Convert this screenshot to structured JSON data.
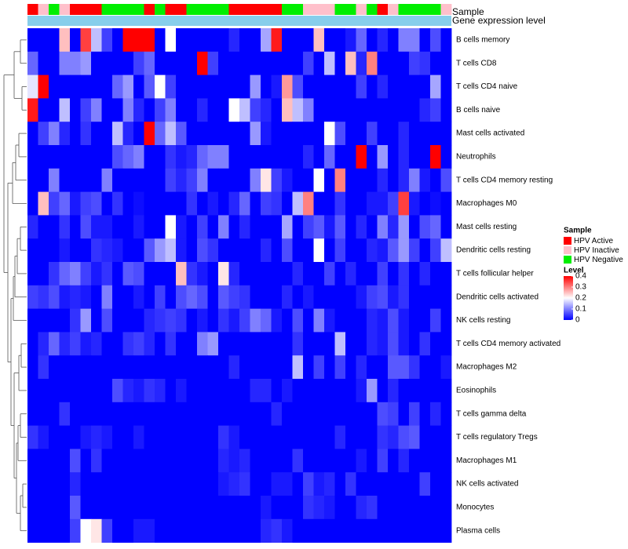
{
  "chart_data": {
    "type": "heatmap",
    "annotation_tracks": [
      {
        "name": "Sample",
        "values": [
          "Active",
          "Inactive",
          "Negative",
          "Inactive",
          "Active",
          "Active",
          "Active",
          "Negative",
          "Negative",
          "Negative",
          "Negative",
          "Active",
          "Negative",
          "Active",
          "Active",
          "Negative",
          "Negative",
          "Negative",
          "Negative",
          "Active",
          "Active",
          "Active",
          "Active",
          "Active",
          "Negative",
          "Negative",
          "Inactive",
          "Inactive",
          "Inactive",
          "Negative",
          "Negative",
          "Inactive",
          "Negative",
          "Active",
          "Inactive",
          "Negative",
          "Negative",
          "Negative",
          "Negative",
          "Inactive"
        ]
      },
      {
        "name": "Gene expression level",
        "values": []
      }
    ],
    "rows": [
      "B cells memory",
      "T cells CD8",
      "T cells CD4 naive",
      "B cells naive",
      "Mast cells activated",
      "Neutrophils",
      "T cells CD4 memory resting",
      "Macrophages M0",
      "Mast cells resting",
      "Dendritic cells resting",
      "T cells follicular helper",
      "Dendritic cells activated",
      "NK cells resting",
      "T cells CD4 memory activated",
      "Macrophages M2",
      "Eosinophils",
      "T cells gamma delta",
      "T cells regulatory  Tregs",
      "Macrophages M1",
      "NK cells activated",
      "Monocytes",
      "Plasma cells"
    ],
    "values": [
      [
        0,
        0,
        0,
        0.25,
        0,
        0.35,
        0.15,
        0.05,
        0,
        0.4,
        0.4,
        0.4,
        0,
        0.2,
        0,
        0,
        0,
        0,
        0,
        0.03,
        0,
        0,
        0.13,
        0.38,
        0,
        0,
        0,
        0.25,
        0,
        0,
        0.02,
        0.08,
        0,
        0.03,
        0,
        0.1,
        0.1,
        0,
        0.06,
        0
      ],
      [
        0.08,
        0,
        0,
        0.1,
        0.1,
        0.12,
        0,
        0,
        0,
        0,
        0.05,
        0.08,
        0,
        0,
        0,
        0,
        0.4,
        0.05,
        0,
        0,
        0,
        0,
        0,
        0,
        0,
        0,
        0.05,
        0,
        0.15,
        0,
        0.25,
        0.03,
        0.3,
        0,
        0,
        0,
        0.05,
        0.04,
        0,
        0
      ],
      [
        0.18,
        0.4,
        0,
        0,
        0,
        0,
        0,
        0,
        0.08,
        0.12,
        0,
        0.07,
        0.2,
        0.05,
        0,
        0,
        0,
        0,
        0,
        0,
        0,
        0.12,
        0,
        0.02,
        0.28,
        0.06,
        0,
        0,
        0,
        0,
        0,
        0.05,
        0,
        0.03,
        0,
        0,
        0,
        0,
        0.13,
        0
      ],
      [
        0.38,
        0,
        0,
        0.15,
        0,
        0.05,
        0.1,
        0,
        0,
        0.1,
        0.03,
        0,
        0.05,
        0.1,
        0,
        0,
        0.03,
        0,
        0,
        0.2,
        0.15,
        0.05,
        0.03,
        0,
        0.25,
        0.15,
        0.1,
        0,
        0,
        0,
        0,
        0,
        0,
        0,
        0,
        0,
        0,
        0.03,
        0.05,
        0
      ],
      [
        0,
        0.05,
        0.1,
        0.03,
        0,
        0.04,
        0,
        0,
        0.15,
        0.03,
        0,
        0.4,
        0.08,
        0.15,
        0.07,
        0,
        0,
        0,
        0,
        0,
        0,
        0.12,
        0.02,
        0,
        0,
        0,
        0,
        0,
        0.2,
        0.06,
        0,
        0,
        0.05,
        0,
        0,
        0.03,
        0,
        0,
        0,
        0
      ],
      [
        0,
        0,
        0,
        0,
        0,
        0,
        0,
        0,
        0.06,
        0.08,
        0.1,
        0,
        0,
        0.04,
        0.02,
        0.03,
        0.08,
        0.1,
        0.1,
        0,
        0,
        0,
        0,
        0,
        0,
        0,
        0.03,
        0,
        0.08,
        0,
        0,
        0.4,
        0,
        0.12,
        0,
        0.03,
        0,
        0,
        0.4,
        0
      ],
      [
        0,
        0,
        0.1,
        0,
        0,
        0,
        0,
        0.1,
        0,
        0,
        0,
        0,
        0,
        0.05,
        0.03,
        0.05,
        0.1,
        0,
        0,
        0,
        0,
        0.1,
        0.22,
        0.05,
        0.02,
        0,
        0,
        0.2,
        0,
        0.3,
        0,
        0,
        0,
        0.03,
        0,
        0.03,
        0.1,
        0.02,
        0,
        0.06
      ],
      [
        0,
        0.25,
        0.05,
        0.08,
        0.02,
        0.05,
        0.06,
        0,
        0.04,
        0,
        0.01,
        0,
        0,
        0,
        0,
        0.04,
        0,
        0.02,
        0,
        0.03,
        0.08,
        0,
        0.05,
        0.04,
        0,
        0.15,
        0.3,
        0,
        0,
        0.04,
        0,
        0,
        0.02,
        0.02,
        0.05,
        0.35,
        0.02,
        0,
        0.01,
        0
      ],
      [
        0.03,
        0,
        0,
        0.04,
        0,
        0.06,
        0.02,
        0.02,
        0,
        0,
        0.02,
        0,
        0,
        0.2,
        0.02,
        0,
        0.05,
        0,
        0.1,
        0,
        0.03,
        0,
        0,
        0,
        0.13,
        0,
        0.05,
        0.07,
        0.02,
        0.07,
        0,
        0.03,
        0,
        0.1,
        0.03,
        0.12,
        0,
        0.06,
        0.08,
        0
      ],
      [
        0,
        0,
        0,
        0.02,
        0,
        0,
        0.04,
        0.03,
        0.02,
        0,
        0,
        0.07,
        0.12,
        0.15,
        0.02,
        0,
        0.06,
        0.04,
        0,
        0,
        0,
        0,
        0.03,
        0,
        0.06,
        0,
        0,
        0.2,
        0,
        0.05,
        0,
        0,
        0.03,
        0.02,
        0.07,
        0.12,
        0.05,
        0,
        0.05,
        0.15
      ],
      [
        0,
        0,
        0.04,
        0.08,
        0.1,
        0.05,
        0.02,
        0.04,
        0,
        0.07,
        0.06,
        0,
        0,
        0,
        0.25,
        0.04,
        0.02,
        0,
        0.22,
        0.03,
        0,
        0,
        0,
        0,
        0,
        0.03,
        0,
        0,
        0.05,
        0,
        0.03,
        0,
        0,
        0.05,
        0,
        0.04,
        0,
        0.03,
        0,
        0
      ],
      [
        0.05,
        0.04,
        0.06,
        0.02,
        0.03,
        0.02,
        0,
        0.1,
        0,
        0,
        0.02,
        0,
        0.05,
        0,
        0.06,
        0.08,
        0.06,
        0,
        0.07,
        0.05,
        0.04,
        0,
        0,
        0,
        0.03,
        0,
        0.02,
        0,
        0,
        0,
        0,
        0.02,
        0.05,
        0.06,
        0.02,
        0.04,
        0,
        0,
        0,
        0
      ],
      [
        0,
        0,
        0,
        0,
        0.04,
        0.12,
        0,
        0.06,
        0,
        0,
        0,
        0.03,
        0.04,
        0.05,
        0.04,
        0,
        0.02,
        0,
        0.04,
        0.02,
        0.05,
        0.1,
        0.08,
        0.02,
        0,
        0.06,
        0,
        0.1,
        0.02,
        0,
        0,
        0,
        0.03,
        0.02,
        0.06,
        0.02,
        0,
        0,
        0.05,
        0
      ],
      [
        0,
        0.03,
        0.08,
        0.03,
        0.05,
        0.02,
        0.03,
        0,
        0,
        0.04,
        0.05,
        0.03,
        0,
        0.04,
        0,
        0,
        0.1,
        0.12,
        0,
        0,
        0,
        0,
        0,
        0,
        0,
        0.04,
        0,
        0,
        0,
        0.15,
        0,
        0,
        0.03,
        0.02,
        0.06,
        0.02,
        0,
        0.04,
        0,
        0
      ],
      [
        0,
        0.04,
        0,
        0,
        0,
        0,
        0,
        0,
        0,
        0,
        0,
        0,
        0,
        0,
        0,
        0,
        0,
        0,
        0,
        0.03,
        0,
        0,
        0,
        0,
        0,
        0.15,
        0,
        0.05,
        0,
        0.05,
        0,
        0.03,
        0,
        0,
        0.07,
        0.07,
        0.04,
        0,
        0,
        0.02
      ],
      [
        0,
        0,
        0,
        0,
        0,
        0,
        0,
        0,
        0.06,
        0.03,
        0.02,
        0.04,
        0.03,
        0,
        0.02,
        0,
        0,
        0,
        0,
        0,
        0,
        0.03,
        0.03,
        0,
        0.02,
        0,
        0,
        0,
        0,
        0,
        0,
        0.02,
        0.12,
        0,
        0.03,
        0,
        0,
        0,
        0,
        0
      ],
      [
        0,
        0,
        0,
        0.04,
        0,
        0,
        0,
        0,
        0,
        0,
        0,
        0,
        0,
        0,
        0,
        0,
        0,
        0,
        0,
        0,
        0,
        0,
        0,
        0.03,
        0,
        0,
        0,
        0,
        0,
        0,
        0,
        0,
        0,
        0.06,
        0.05,
        0,
        0.05,
        0,
        0.03,
        0
      ],
      [
        0.04,
        0.02,
        0,
        0,
        0,
        0.02,
        0.03,
        0.02,
        0,
        0,
        0.02,
        0,
        0,
        0,
        0,
        0,
        0,
        0,
        0.04,
        0.02,
        0,
        0,
        0,
        0,
        0,
        0,
        0,
        0,
        0,
        0.03,
        0,
        0,
        0,
        0.04,
        0.03,
        0.06,
        0.07,
        0,
        0,
        0
      ],
      [
        0,
        0,
        0,
        0,
        0.06,
        0,
        0.04,
        0,
        0,
        0,
        0,
        0,
        0,
        0,
        0,
        0,
        0,
        0,
        0.03,
        0.02,
        0.03,
        0,
        0,
        0,
        0,
        0.04,
        0,
        0,
        0,
        0,
        0,
        0.02,
        0,
        0.05,
        0,
        0.03,
        0,
        0,
        0,
        0
      ],
      [
        0,
        0,
        0,
        0,
        0.03,
        0,
        0,
        0,
        0,
        0,
        0,
        0,
        0,
        0,
        0,
        0,
        0,
        0,
        0.02,
        0.03,
        0.04,
        0,
        0,
        0.02,
        0.02,
        0,
        0.05,
        0.02,
        0.03,
        0,
        0.04,
        0,
        0,
        0,
        0,
        0,
        0,
        0.05,
        0,
        0
      ],
      [
        0,
        0,
        0,
        0,
        0.07,
        0,
        0,
        0,
        0,
        0,
        0,
        0,
        0,
        0,
        0,
        0,
        0,
        0,
        0,
        0,
        0,
        0,
        0.02,
        0,
        0,
        0,
        0.04,
        0.03,
        0.02,
        0,
        0,
        0.03,
        0.04,
        0,
        0,
        0,
        0,
        0,
        0,
        0
      ],
      [
        0,
        0,
        0,
        0,
        0.05,
        0.2,
        0.22,
        0.05,
        0,
        0,
        0.02,
        0.02,
        0,
        0,
        0,
        0,
        0,
        0,
        0,
        0,
        0,
        0,
        0.03,
        0.04,
        0.02,
        0,
        0,
        0,
        0,
        0,
        0,
        0,
        0,
        0,
        0,
        0,
        0,
        0,
        0,
        0
      ]
    ],
    "color_scale": {
      "title": "Level",
      "min": 0,
      "max": 0.4,
      "ticks": [
        "0.4",
        "0.3",
        "0.2",
        "0.1",
        "0"
      ],
      "tick_values": [
        0.4,
        0.3,
        0.2,
        0.1,
        0
      ],
      "colors": {
        "low": "#0000ff",
        "mid": "#ffffff",
        "high": "#ff0000"
      }
    },
    "legend": {
      "title": "Sample",
      "position": "right",
      "items": [
        {
          "key": "Active",
          "label": "HPV Active",
          "color": "#ff0000"
        },
        {
          "key": "Inactive",
          "label": "HPV Inactive",
          "color": "#ffc0cb"
        },
        {
          "key": "Negative",
          "label": "HPV Negative",
          "color": "#00ee00"
        }
      ]
    },
    "annotation_colors": {
      "gene_expression_level": "#87ceeb"
    },
    "row_dendrogram": true,
    "grid": false
  }
}
